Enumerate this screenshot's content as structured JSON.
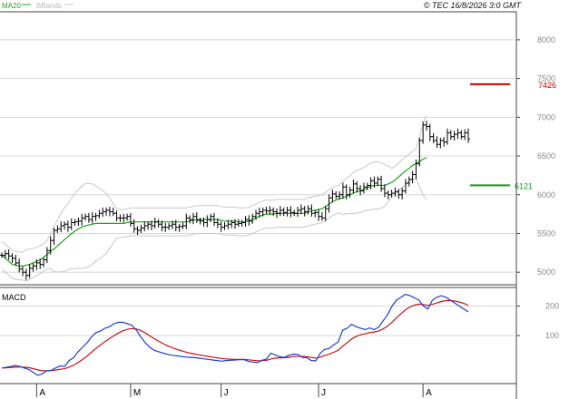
{
  "header": {
    "ma20_label": "MA20",
    "bbands_label": "BBands",
    "credit": "© TEC 16/8/2026 3:0 GMT"
  },
  "colors": {
    "ma20": "#1aa51a",
    "bbands": "#c8c8c8",
    "price": "#000000",
    "target_high": "#cc0000",
    "target_low": "#1a9a1a",
    "macd": "#1f3fd1",
    "signal": "#cc1111",
    "grid": "#d8d8d8"
  },
  "chart_data": [
    {
      "type": "ohlc",
      "name": "price",
      "y_ticks": [
        "5000",
        "5500",
        "6000",
        "6500",
        "7000",
        "7500",
        "8000"
      ],
      "y_tick_values": [
        5000,
        5500,
        6000,
        6500,
        7000,
        7500,
        8000
      ],
      "ylim": [
        4850,
        8350
      ],
      "x_ticks": [
        "A",
        "M",
        "J",
        "J",
        "A"
      ],
      "x_tick_index": [
        10,
        37,
        63,
        91,
        121
      ],
      "close": [
        5220,
        5240,
        5210,
        5180,
        5120,
        5040,
        5000,
        4960,
        5050,
        5080,
        5120,
        5100,
        5160,
        5280,
        5410,
        5540,
        5560,
        5600,
        5620,
        5580,
        5640,
        5650,
        5660,
        5700,
        5720,
        5680,
        5720,
        5730,
        5760,
        5780,
        5800,
        5780,
        5760,
        5700,
        5700,
        5700,
        5720,
        5630,
        5560,
        5540,
        5570,
        5600,
        5620,
        5600,
        5650,
        5620,
        5580,
        5580,
        5600,
        5620,
        5580,
        5590,
        5600,
        5700,
        5680,
        5720,
        5670,
        5660,
        5640,
        5680,
        5720,
        5640,
        5620,
        5580,
        5600,
        5620,
        5640,
        5620,
        5630,
        5640,
        5680,
        5660,
        5720,
        5760,
        5780,
        5800,
        5790,
        5800,
        5780,
        5760,
        5800,
        5770,
        5800,
        5770,
        5760,
        5800,
        5820,
        5780,
        5820,
        5760,
        5770,
        5720,
        5700,
        5820,
        5960,
        6010,
        5980,
        6000,
        6100,
        6000,
        6060,
        6140,
        6080,
        6050,
        6100,
        6120,
        6180,
        6150,
        6200,
        6080,
        6020,
        6000,
        6020,
        6040,
        6000,
        6050,
        6150,
        6200,
        6260,
        6400,
        6700,
        6900,
        6880,
        6750,
        6700,
        6650,
        6700,
        6680,
        6800,
        6750,
        6780,
        6800,
        6750,
        6800,
        6720
      ],
      "ma20": [
        5220,
        5180,
        5140,
        5100,
        5090,
        5080,
        5080,
        5090,
        5100,
        5120,
        5140,
        5160,
        5190,
        5230,
        5270,
        5300,
        5340,
        5380,
        5420,
        5460,
        5500,
        5530,
        5560,
        5580,
        5600,
        5610,
        5620,
        5630,
        5630,
        5630,
        5630,
        5630,
        5630,
        5630,
        5630,
        5630,
        5640,
        5650,
        5650,
        5650,
        5650,
        5650,
        5650,
        5650,
        5650,
        5650,
        5650,
        5650,
        5650,
        5650,
        5650,
        5650,
        5650,
        5650,
        5660,
        5670,
        5680,
        5680,
        5680,
        5680,
        5680,
        5680,
        5680,
        5670,
        5660,
        5660,
        5660,
        5660,
        5650,
        5650,
        5650,
        5660,
        5680,
        5700,
        5720,
        5740,
        5750,
        5750,
        5750,
        5760,
        5760,
        5760,
        5760,
        5760,
        5760,
        5760,
        5760,
        5760,
        5780,
        5790,
        5800,
        5810,
        5820,
        5850,
        5880,
        5910,
        5930,
        5950,
        5960,
        5980,
        6000,
        6020,
        6040,
        6050,
        6070,
        6090,
        6110,
        6120,
        6120,
        6120,
        6120,
        6140,
        6160,
        6190,
        6230,
        6270,
        6310,
        6340,
        6380,
        6400,
        6430,
        6460,
        6480
      ]
    },
    {
      "type": "line",
      "name": "MACD",
      "title": "MACD",
      "y_ticks": [
        "200",
        "100"
      ],
      "y_tick_values": [
        200,
        100
      ],
      "ylim": [
        -60,
        260
      ],
      "macd": [
        -10,
        -8,
        -5,
        -2,
        -5,
        -10,
        -15,
        -25,
        -35,
        -30,
        -20,
        -18,
        -10,
        -3,
        -5,
        15,
        25,
        45,
        60,
        75,
        95,
        110,
        115,
        125,
        130,
        140,
        145,
        145,
        140,
        135,
        118,
        95,
        75,
        60,
        50,
        45,
        40,
        36,
        33,
        31,
        29,
        27,
        26,
        25,
        23,
        21,
        19,
        17,
        15,
        13,
        15,
        16,
        17,
        18,
        18,
        12,
        10,
        8,
        16,
        20,
        40,
        34,
        28,
        26,
        33,
        37,
        36,
        26,
        25,
        15,
        14,
        40,
        53,
        56,
        68,
        78,
        118,
        125,
        138,
        130,
        125,
        120,
        126,
        120,
        128,
        150,
        170,
        200,
        220,
        230,
        240,
        235,
        228,
        220,
        200,
        190,
        220,
        230,
        235,
        230,
        220,
        210,
        200,
        190,
        180
      ]
    }
  ],
  "targets": [
    {
      "label": "7426",
      "value": 7426
    },
    {
      "label": "6121",
      "value": 6121
    }
  ]
}
